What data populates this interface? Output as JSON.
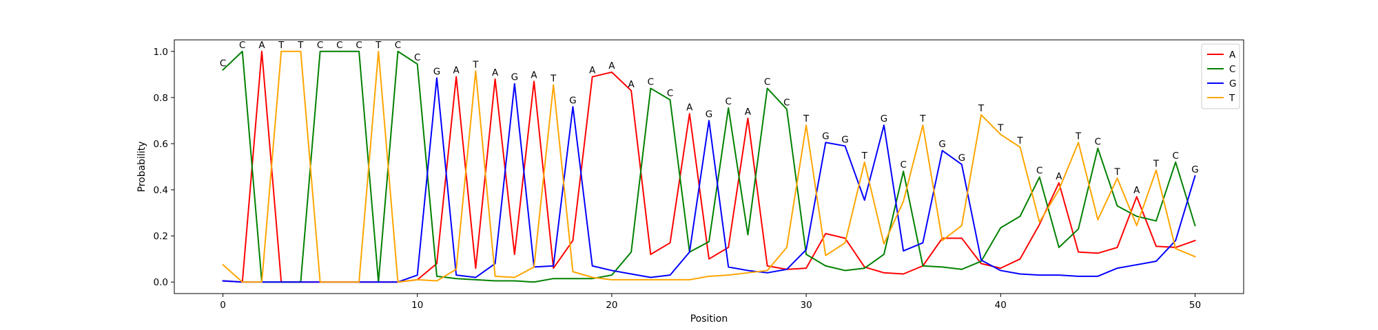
{
  "chart_data": {
    "type": "line",
    "xlabel": "Position",
    "ylabel": "Probability",
    "xlim": [
      -2.5,
      52.5
    ],
    "ylim": [
      -0.05,
      1.05
    ],
    "xticks": [
      0,
      10,
      20,
      30,
      40,
      50
    ],
    "xtick_labels": [
      "0",
      "10",
      "20",
      "30",
      "40",
      "50"
    ],
    "yticks": [
      0.0,
      0.2,
      0.4,
      0.6,
      0.8,
      1.0
    ],
    "ytick_labels": [
      "0.0",
      "0.2",
      "0.4",
      "0.6",
      "0.8",
      "1.0"
    ],
    "grid": false,
    "legend_position": "top-right",
    "x": [
      0,
      1,
      2,
      3,
      4,
      5,
      6,
      7,
      8,
      9,
      10,
      11,
      12,
      13,
      14,
      15,
      16,
      17,
      18,
      19,
      20,
      21,
      22,
      23,
      24,
      25,
      26,
      27,
      28,
      29,
      30,
      31,
      32,
      33,
      34,
      35,
      36,
      37,
      38,
      39,
      40,
      41,
      42,
      43,
      44,
      45,
      46,
      47,
      48,
      49,
      50
    ],
    "series": [
      {
        "name": "A",
        "color": "#ff0000",
        "values": [
          0.005,
          0.0,
          1.0,
          0.0,
          0.0,
          0.0,
          0.0,
          0.0,
          0.0,
          0.0,
          0.01,
          0.08,
          0.89,
          0.06,
          0.88,
          0.12,
          0.87,
          0.06,
          0.18,
          0.89,
          0.91,
          0.83,
          0.12,
          0.17,
          0.73,
          0.1,
          0.15,
          0.71,
          0.07,
          0.055,
          0.06,
          0.21,
          0.19,
          0.065,
          0.04,
          0.035,
          0.07,
          0.19,
          0.19,
          0.08,
          0.06,
          0.1,
          0.25,
          0.43,
          0.13,
          0.125,
          0.15,
          0.37,
          0.155,
          0.15,
          0.18
        ]
      },
      {
        "name": "C",
        "color": "#008000",
        "values": [
          0.92,
          1.0,
          0.0,
          0.0,
          0.0,
          1.0,
          1.0,
          1.0,
          0.0,
          1.0,
          0.945,
          0.025,
          0.015,
          0.01,
          0.005,
          0.005,
          0.0,
          0.015,
          0.015,
          0.015,
          0.03,
          0.13,
          0.84,
          0.79,
          0.13,
          0.175,
          0.755,
          0.205,
          0.84,
          0.75,
          0.12,
          0.07,
          0.05,
          0.06,
          0.12,
          0.48,
          0.07,
          0.065,
          0.055,
          0.09,
          0.235,
          0.285,
          0.455,
          0.15,
          0.23,
          0.58,
          0.33,
          0.285,
          0.265,
          0.52,
          0.245
        ]
      },
      {
        "name": "G",
        "color": "#0000ff",
        "values": [
          0.005,
          0.0,
          0.0,
          0.0,
          0.0,
          0.0,
          0.0,
          0.0,
          0.0,
          0.0,
          0.03,
          0.885,
          0.03,
          0.02,
          0.08,
          0.86,
          0.065,
          0.07,
          0.76,
          0.07,
          0.05,
          0.035,
          0.02,
          0.03,
          0.13,
          0.7,
          0.065,
          0.05,
          0.04,
          0.055,
          0.14,
          0.605,
          0.59,
          0.355,
          0.68,
          0.135,
          0.17,
          0.57,
          0.51,
          0.095,
          0.05,
          0.035,
          0.03,
          0.03,
          0.025,
          0.025,
          0.06,
          0.075,
          0.09,
          0.18,
          0.46
        ]
      },
      {
        "name": "T",
        "color": "#ffa500",
        "values": [
          0.075,
          0.0,
          0.0,
          1.0,
          1.0,
          0.0,
          0.0,
          0.0,
          1.0,
          0.0,
          0.01,
          0.005,
          0.055,
          0.915,
          0.025,
          0.02,
          0.065,
          0.855,
          0.045,
          0.02,
          0.01,
          0.01,
          0.01,
          0.01,
          0.01,
          0.025,
          0.03,
          0.04,
          0.05,
          0.15,
          0.68,
          0.115,
          0.17,
          0.52,
          0.165,
          0.35,
          0.68,
          0.18,
          0.245,
          0.725,
          0.64,
          0.585,
          0.26,
          0.4,
          0.605,
          0.27,
          0.45,
          0.245,
          0.485,
          0.145,
          0.11
        ]
      }
    ],
    "annotations": [
      {
        "x": 0,
        "y": 0.92,
        "text": "C"
      },
      {
        "x": 1,
        "y": 1.0,
        "text": "C"
      },
      {
        "x": 2,
        "y": 1.0,
        "text": "A"
      },
      {
        "x": 3,
        "y": 1.0,
        "text": "T"
      },
      {
        "x": 4,
        "y": 1.0,
        "text": "T"
      },
      {
        "x": 5,
        "y": 1.0,
        "text": "C"
      },
      {
        "x": 6,
        "y": 1.0,
        "text": "C"
      },
      {
        "x": 7,
        "y": 1.0,
        "text": "C"
      },
      {
        "x": 8,
        "y": 1.0,
        "text": "T"
      },
      {
        "x": 9,
        "y": 1.0,
        "text": "C"
      },
      {
        "x": 10,
        "y": 0.945,
        "text": "C"
      },
      {
        "x": 11,
        "y": 0.885,
        "text": "G"
      },
      {
        "x": 12,
        "y": 0.89,
        "text": "A"
      },
      {
        "x": 13,
        "y": 0.915,
        "text": "T"
      },
      {
        "x": 14,
        "y": 0.88,
        "text": "A"
      },
      {
        "x": 15,
        "y": 0.86,
        "text": "G"
      },
      {
        "x": 16,
        "y": 0.87,
        "text": "A"
      },
      {
        "x": 17,
        "y": 0.855,
        "text": "T"
      },
      {
        "x": 18,
        "y": 0.76,
        "text": "G"
      },
      {
        "x": 19,
        "y": 0.89,
        "text": "A"
      },
      {
        "x": 20,
        "y": 0.91,
        "text": "A"
      },
      {
        "x": 21,
        "y": 0.83,
        "text": "A"
      },
      {
        "x": 22,
        "y": 0.84,
        "text": "C"
      },
      {
        "x": 23,
        "y": 0.79,
        "text": "C"
      },
      {
        "x": 24,
        "y": 0.73,
        "text": "A"
      },
      {
        "x": 25,
        "y": 0.7,
        "text": "G"
      },
      {
        "x": 26,
        "y": 0.755,
        "text": "C"
      },
      {
        "x": 27,
        "y": 0.71,
        "text": "A"
      },
      {
        "x": 28,
        "y": 0.84,
        "text": "C"
      },
      {
        "x": 29,
        "y": 0.75,
        "text": "C"
      },
      {
        "x": 30,
        "y": 0.68,
        "text": "T"
      },
      {
        "x": 31,
        "y": 0.605,
        "text": "G"
      },
      {
        "x": 32,
        "y": 0.59,
        "text": "G"
      },
      {
        "x": 33,
        "y": 0.52,
        "text": "T"
      },
      {
        "x": 34,
        "y": 0.68,
        "text": "G"
      },
      {
        "x": 35,
        "y": 0.48,
        "text": "C"
      },
      {
        "x": 36,
        "y": 0.68,
        "text": "T"
      },
      {
        "x": 37,
        "y": 0.57,
        "text": "G"
      },
      {
        "x": 38,
        "y": 0.51,
        "text": "G"
      },
      {
        "x": 39,
        "y": 0.725,
        "text": "T"
      },
      {
        "x": 40,
        "y": 0.64,
        "text": "T"
      },
      {
        "x": 41,
        "y": 0.585,
        "text": "T"
      },
      {
        "x": 42,
        "y": 0.455,
        "text": "C"
      },
      {
        "x": 43,
        "y": 0.43,
        "text": "A"
      },
      {
        "x": 44,
        "y": 0.605,
        "text": "T"
      },
      {
        "x": 45,
        "y": 0.58,
        "text": "C"
      },
      {
        "x": 46,
        "y": 0.45,
        "text": "T"
      },
      {
        "x": 47,
        "y": 0.37,
        "text": "A"
      },
      {
        "x": 48,
        "y": 0.485,
        "text": "T"
      },
      {
        "x": 49,
        "y": 0.52,
        "text": "C"
      },
      {
        "x": 50,
        "y": 0.46,
        "text": "G"
      }
    ]
  }
}
